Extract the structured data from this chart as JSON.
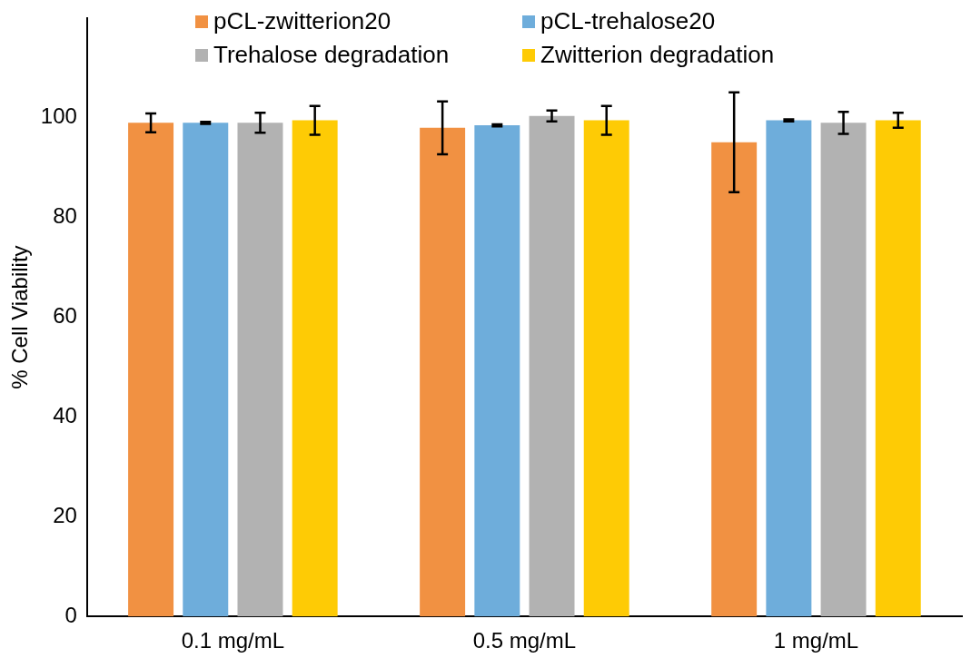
{
  "chart_data": {
    "type": "bar",
    "ylabel": "% Cell Viability",
    "categories": [
      "0.1 mg/mL",
      "0.5 mg/mL",
      "1 mg/mL"
    ],
    "series": [
      {
        "name": "pCL-zwitterion20",
        "color": "#f19142",
        "values": [
          99,
          98,
          95.1
        ],
        "errors": [
          1.9,
          5.3,
          10
        ]
      },
      {
        "name": "pCL-trehalose20",
        "color": "#6eaddb",
        "values": [
          99,
          98.5,
          99.5
        ],
        "errors": [
          0.2,
          0.2,
          0.2
        ]
      },
      {
        "name": "Trehalose degradation",
        "color": "#b2b2b2",
        "values": [
          99,
          100.4,
          99
        ],
        "errors": [
          2,
          1.1,
          2.2
        ]
      },
      {
        "name": "Zwitterion degradation",
        "color": "#fecb05",
        "values": [
          99.5,
          99.5,
          99.5
        ],
        "errors": [
          2.9,
          2.9,
          1.5
        ]
      }
    ],
    "ylim": [
      0,
      120
    ],
    "yticks": [
      0,
      20,
      40,
      60,
      80,
      100
    ],
    "grid": false,
    "legend": "top"
  }
}
